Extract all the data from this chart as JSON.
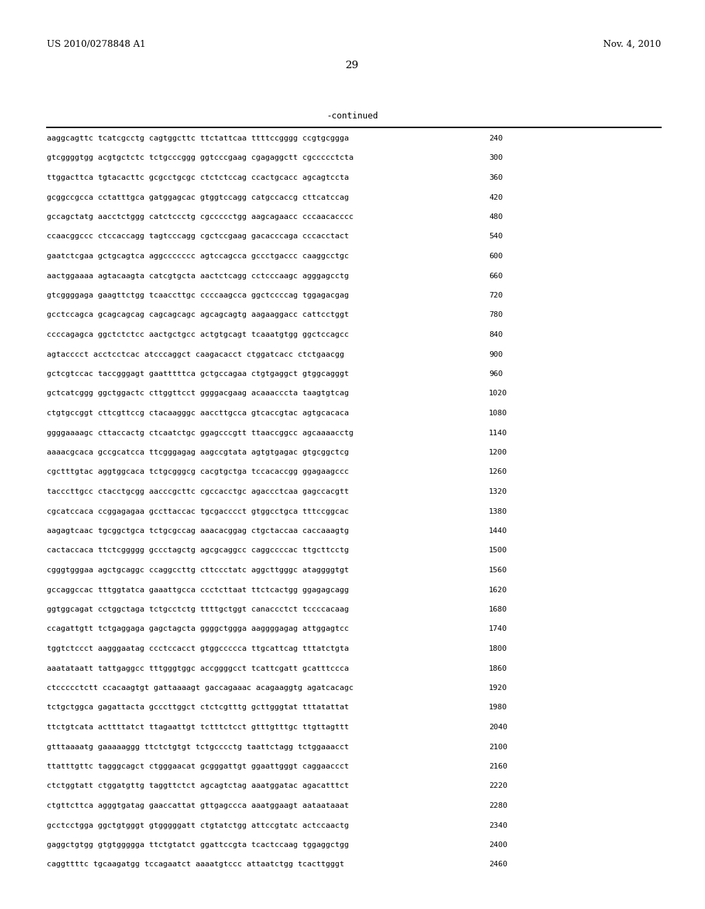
{
  "header_left": "US 2010/0278848 A1",
  "header_right": "Nov. 4, 2010",
  "page_number": "29",
  "continued_label": "-continued",
  "background_color": "#ffffff",
  "text_color": "#000000",
  "sequences": [
    {
      "seq": "aaggcagttc tcatcgcctg cagtggcttc ttctattcaa ttttccgggg ccgtgcggga",
      "num": "240"
    },
    {
      "seq": "gtcggggtgg acgtgctctc tctgcccggg ggtcccgaag cgagaggctt cgccccctcta",
      "num": "300"
    },
    {
      "seq": "ttggacttca tgtacacttc gcgcctgcgc ctctctccag ccactgcacc agcagtccta",
      "num": "360"
    },
    {
      "seq": "gcggccgcca cctatttgca gatggagcac gtggtccagg catgccaccg cttcatccag",
      "num": "420"
    },
    {
      "seq": "gccagctatg aacctctggg catctccctg cgccccctgg aagcagaacc cccaacacccc",
      "num": "480"
    },
    {
      "seq": "ccaacggccc ctccaccagg tagtcccagg cgctccgaag gacacccaga cccacctact",
      "num": "540"
    },
    {
      "seq": "gaatctcgaa gctgcagtca aggccccccc agtccagcca gccctgaccc caaggcctgc",
      "num": "600"
    },
    {
      "seq": "aactggaaaa agtacaagta catcgtgcta aactctcagg cctcccaagc agggagcctg",
      "num": "660"
    },
    {
      "seq": "gtcggggaga gaagttctgg tcaaccttgc ccccaagcca ggctccccag tggagacgag",
      "num": "720"
    },
    {
      "seq": "gcctccagca gcagcagcag cagcagcagc agcagcagtg aagaaggacc cattcctggt",
      "num": "780"
    },
    {
      "seq": "ccccagagca ggctctctcc aactgctgcc actgtgcagt tcaaatgtgg ggctccagcc",
      "num": "840"
    },
    {
      "seq": "agtacccct acctcctcac atcccaggct caagacacct ctggatcacc ctctgaacgg",
      "num": "900"
    },
    {
      "seq": "gctcgtccac taccgggagt gaatttttca gctgccagaa ctgtgaggct gtggcagggt",
      "num": "960"
    },
    {
      "seq": "gctcatcggg ggctggactc cttggttcct ggggacgaag acaaacccta taagtgtcag",
      "num": "1020"
    },
    {
      "seq": "ctgtgccggt cttcgttccg ctacaagggc aaccttgcca gtcaccgtac agtgcacaca",
      "num": "1080"
    },
    {
      "seq": "ggggaaaagc cttaccactg ctcaatctgc ggagcccgtt ttaaccggcc agcaaaacctg",
      "num": "1140"
    },
    {
      "seq": "aaaacgcaca gccgcatcca ttcgggagag aagccgtata agtgtgagac gtgcggctcg",
      "num": "1200"
    },
    {
      "seq": "cgctttgtac aggtggcaca tctgcgggcg cacgtgctga tccacaccgg ggagaagccc",
      "num": "1260"
    },
    {
      "seq": "tacccttgcc ctacctgcgg aacccgcttc cgccacctgc agaccctcaa gagccacgtt",
      "num": "1320"
    },
    {
      "seq": "cgcatccaca ccggagagaa gccttaccac tgcgacccct gtggcctgca tttccggcac",
      "num": "1380"
    },
    {
      "seq": "aagagtcaac tgcggctgca tctgcgccag aaacacggag ctgctaccaa caccaaagtg",
      "num": "1440"
    },
    {
      "seq": "cactaccaca ttctcggggg gccctagctg agcgcaggcc caggccccac ttgcttcctg",
      "num": "1500"
    },
    {
      "seq": "cgggtgggaa agctgcaggc ccaggccttg cttccctatc aggcttgggc ataggggtgt",
      "num": "1560"
    },
    {
      "seq": "gccaggccac tttggtatca gaaattgcca ccctcttaat ttctcactgg ggagagcagg",
      "num": "1620"
    },
    {
      "seq": "ggtggcagat cctggctaga tctgcctctg ttttgctggt canaccctct tccccacaag",
      "num": "1680"
    },
    {
      "seq": "ccagattgtt tctgaggaga gagctagcta ggggctggga aaggggagag attggagtcc",
      "num": "1740"
    },
    {
      "seq": "tggtctccct aagggaatag ccctccacct gtggccccca ttgcattcag tttatctgta",
      "num": "1800"
    },
    {
      "seq": "aaatataatt tattgaggcc tttgggtggc accggggcct tcattcgatt gcatttccca",
      "num": "1860"
    },
    {
      "seq": "ctccccctctt ccacaagtgt gattaaaagt gaccagaaac acagaaggtg agatcacagc",
      "num": "1920"
    },
    {
      "seq": "tctgctggca gagattacta gcccttggct ctctcgtttg gcttgggtat tttatattat",
      "num": "1980"
    },
    {
      "seq": "ttctgtcata acttttatct ttagaattgt tctttctcct gtttgtttgc ttgttagttt",
      "num": "2040"
    },
    {
      "seq": "gtttaaaatg gaaaaaggg ttctctgtgt tctgcccctg taattctagg tctggaaacct",
      "num": "2100"
    },
    {
      "seq": "ttatttgttc tagggcagct ctgggaacat gcgggattgt ggaattgggt caggaaccct",
      "num": "2160"
    },
    {
      "seq": "ctctggtatt ctggatgttg taggttctct agcagtctag aaatggatac agacatttct",
      "num": "2220"
    },
    {
      "seq": "ctgttcttca agggtgatag gaaccattat gttgagccca aaatggaagt aataataaat",
      "num": "2280"
    },
    {
      "seq": "gcctcctgga ggctgtgggt gtgggggatt ctgtatctgg attccgtatc actccaactg",
      "num": "2340"
    },
    {
      "seq": "gaggctgtgg gtgtggggga ttctgtatct ggattccgta tcactccaag tggaggctgg",
      "num": "2400"
    },
    {
      "seq": "caggttttc tgcaagatgg tccagaatct aaaatgtccc attaatctgg tcacttgggt",
      "num": "2460"
    }
  ]
}
